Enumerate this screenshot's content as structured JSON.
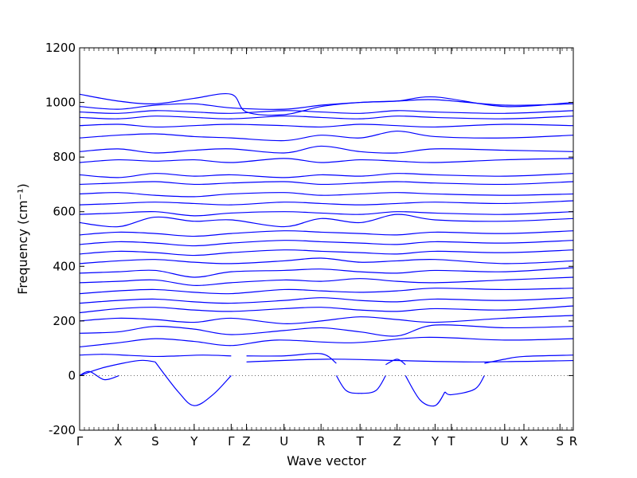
{
  "chart_data": {
    "type": "line",
    "title": "",
    "xlabel": "Wave vector",
    "ylabel": "Frequency (cm⁻¹)",
    "ylim": [
      -200,
      1200
    ],
    "yticks": [
      -200,
      0,
      200,
      400,
      600,
      800,
      1000,
      1200
    ],
    "x_tick_labels": [
      "Γ",
      "X",
      "S",
      "Y",
      "Γ",
      "Z",
      "U",
      "R",
      "T",
      "Z",
      "Y",
      "T",
      "U",
      "X",
      "S",
      "R"
    ],
    "x_tick_positions": [
      0.0,
      0.078,
      0.153,
      0.232,
      0.307,
      0.338,
      0.414,
      0.489,
      0.568,
      0.643,
      0.72,
      0.753,
      0.861,
      0.9,
      0.973,
      1.0
    ],
    "zero_line": true,
    "grid": false,
    "line_color": "#0000ff",
    "series": [
      {
        "x": [
          0.0,
          0.02,
          0.05,
          0.08
        ],
        "y": [
          0,
          15,
          -15,
          0
        ]
      },
      {
        "x": [
          0.0,
          0.05,
          0.12,
          0.153
        ],
        "y": [
          0,
          30,
          55,
          50
        ]
      },
      {
        "x": [
          0.153,
          0.2,
          0.232,
          0.27,
          0.307
        ],
        "y": [
          50,
          -60,
          -110,
          -70,
          0
        ]
      },
      {
        "x": [
          0.0,
          0.05,
          0.1,
          0.153,
          0.2,
          0.25,
          0.307
        ],
        "y": [
          75,
          78,
          74,
          70,
          72,
          75,
          72
        ]
      },
      {
        "x": [
          0.338,
          0.414,
          0.489,
          0.52
        ],
        "y": [
          72,
          72,
          80,
          45
        ]
      },
      {
        "x": [
          0.52,
          0.54,
          0.568,
          0.6,
          0.62
        ],
        "y": [
          0,
          -55,
          -65,
          -55,
          0
        ]
      },
      {
        "x": [
          0.62,
          0.643,
          0.66
        ],
        "y": [
          40,
          60,
          40
        ]
      },
      {
        "x": [
          0.66,
          0.69,
          0.72,
          0.74
        ],
        "y": [
          0,
          -90,
          -110,
          -60
        ]
      },
      {
        "x": [
          0.74,
          0.753,
          0.8,
          0.82
        ],
        "y": [
          -60,
          -70,
          -50,
          0
        ]
      },
      {
        "x": [
          0.82,
          0.861,
          0.9,
          1.0
        ],
        "y": [
          45,
          60,
          70,
          75
        ]
      },
      {
        "x": [
          0.338,
          0.5,
          0.643,
          0.8,
          1.0
        ],
        "y": [
          50,
          60,
          55,
          50,
          55
        ]
      },
      {
        "x": [
          0.0,
          0.078,
          0.153,
          0.232,
          0.307,
          0.4,
          0.55,
          0.7,
          0.861,
          1.0
        ],
        "y": [
          105,
          120,
          135,
          125,
          110,
          130,
          120,
          140,
          130,
          135
        ]
      },
      {
        "x": [
          0.0,
          0.078,
          0.153,
          0.232,
          0.307,
          0.414,
          0.489,
          0.568,
          0.643,
          0.72,
          0.861,
          1.0
        ],
        "y": [
          155,
          160,
          180,
          170,
          150,
          165,
          175,
          160,
          145,
          185,
          175,
          180
        ]
      },
      {
        "x": [
          0.0,
          0.078,
          0.153,
          0.232,
          0.307,
          0.414,
          0.489,
          0.568,
          0.643,
          0.72,
          0.861,
          1.0
        ],
        "y": [
          200,
          210,
          205,
          195,
          210,
          190,
          200,
          215,
          205,
          195,
          210,
          220
        ]
      },
      {
        "x": [
          0.0,
          0.078,
          0.153,
          0.232,
          0.307,
          0.414,
          0.489,
          0.568,
          0.643,
          0.72,
          0.861,
          1.0
        ],
        "y": [
          230,
          245,
          250,
          240,
          235,
          245,
          250,
          240,
          235,
          245,
          240,
          255
        ]
      },
      {
        "x": [
          0.0,
          0.078,
          0.153,
          0.232,
          0.307,
          0.414,
          0.489,
          0.568,
          0.643,
          0.72,
          0.861,
          1.0
        ],
        "y": [
          265,
          275,
          280,
          270,
          265,
          275,
          285,
          275,
          270,
          280,
          275,
          285
        ]
      },
      {
        "x": [
          0.0,
          0.078,
          0.153,
          0.232,
          0.307,
          0.414,
          0.489,
          0.568,
          0.643,
          0.72,
          0.861,
          1.0
        ],
        "y": [
          300,
          310,
          315,
          305,
          300,
          315,
          310,
          305,
          310,
          320,
          315,
          320
        ]
      },
      {
        "x": [
          0.0,
          0.078,
          0.153,
          0.232,
          0.307,
          0.414,
          0.489,
          0.568,
          0.643,
          0.72,
          0.861,
          1.0
        ],
        "y": [
          340,
          345,
          350,
          330,
          340,
          350,
          345,
          355,
          345,
          340,
          350,
          360
        ]
      },
      {
        "x": [
          0.0,
          0.078,
          0.153,
          0.232,
          0.307,
          0.414,
          0.489,
          0.568,
          0.643,
          0.72,
          0.861,
          1.0
        ],
        "y": [
          375,
          380,
          385,
          360,
          380,
          385,
          390,
          380,
          375,
          385,
          380,
          395
        ]
      },
      {
        "x": [
          0.0,
          0.078,
          0.153,
          0.232,
          0.307,
          0.414,
          0.489,
          0.568,
          0.643,
          0.72,
          0.861,
          1.0
        ],
        "y": [
          410,
          420,
          425,
          415,
          410,
          420,
          430,
          415,
          420,
          425,
          410,
          420
        ]
      },
      {
        "x": [
          0.0,
          0.078,
          0.153,
          0.232,
          0.307,
          0.414,
          0.489,
          0.568,
          0.643,
          0.72,
          0.861,
          1.0
        ],
        "y": [
          445,
          455,
          450,
          440,
          450,
          460,
          455,
          450,
          445,
          455,
          450,
          460
        ]
      },
      {
        "x": [
          0.0,
          0.078,
          0.153,
          0.232,
          0.307,
          0.414,
          0.489,
          0.568,
          0.643,
          0.72,
          0.861,
          1.0
        ],
        "y": [
          480,
          490,
          485,
          475,
          485,
          495,
          490,
          485,
          480,
          490,
          485,
          495
        ]
      },
      {
        "x": [
          0.0,
          0.078,
          0.153,
          0.232,
          0.307,
          0.414,
          0.489,
          0.568,
          0.643,
          0.72,
          0.861,
          1.0
        ],
        "y": [
          515,
          525,
          520,
          510,
          520,
          530,
          525,
          520,
          515,
          525,
          520,
          530
        ]
      },
      {
        "x": [
          0.0,
          0.078,
          0.153,
          0.232,
          0.307,
          0.414,
          0.489,
          0.568,
          0.643,
          0.72,
          0.861,
          1.0
        ],
        "y": [
          560,
          545,
          580,
          565,
          570,
          545,
          575,
          560,
          590,
          570,
          565,
          575
        ]
      },
      {
        "x": [
          0.0,
          0.078,
          0.153,
          0.232,
          0.307,
          0.414,
          0.489,
          0.568,
          0.643,
          0.72,
          0.861,
          1.0
        ],
        "y": [
          590,
          595,
          600,
          585,
          595,
          600,
          595,
          590,
          600,
          595,
          590,
          600
        ]
      },
      {
        "x": [
          0.0,
          0.078,
          0.153,
          0.232,
          0.307,
          0.414,
          0.489,
          0.568,
          0.643,
          0.72,
          0.861,
          1.0
        ],
        "y": [
          625,
          630,
          635,
          630,
          625,
          635,
          630,
          625,
          630,
          635,
          630,
          640
        ]
      },
      {
        "x": [
          0.0,
          0.078,
          0.153,
          0.232,
          0.307,
          0.414,
          0.489,
          0.568,
          0.643,
          0.72,
          0.861,
          1.0
        ],
        "y": [
          665,
          670,
          660,
          655,
          665,
          670,
          660,
          665,
          670,
          665,
          660,
          665
        ]
      },
      {
        "x": [
          0.0,
          0.078,
          0.153,
          0.232,
          0.307,
          0.414,
          0.489,
          0.568,
          0.643,
          0.72,
          0.861,
          1.0
        ],
        "y": [
          700,
          705,
          710,
          700,
          705,
          710,
          700,
          705,
          710,
          705,
          700,
          710
        ]
      },
      {
        "x": [
          0.0,
          0.078,
          0.153,
          0.232,
          0.307,
          0.414,
          0.489,
          0.568,
          0.643,
          0.72,
          0.861,
          1.0
        ],
        "y": [
          735,
          725,
          740,
          730,
          735,
          725,
          735,
          730,
          740,
          735,
          730,
          740
        ]
      },
      {
        "x": [
          0.0,
          0.078,
          0.153,
          0.232,
          0.307,
          0.414,
          0.489,
          0.568,
          0.643,
          0.72,
          0.861,
          1.0
        ],
        "y": [
          780,
          790,
          785,
          790,
          780,
          795,
          780,
          790,
          785,
          780,
          790,
          795
        ]
      },
      {
        "x": [
          0.0,
          0.078,
          0.153,
          0.232,
          0.307,
          0.414,
          0.489,
          0.568,
          0.643,
          0.72,
          0.861,
          1.0
        ],
        "y": [
          820,
          830,
          815,
          825,
          830,
          815,
          840,
          820,
          815,
          830,
          825,
          820
        ]
      },
      {
        "x": [
          0.0,
          0.078,
          0.153,
          0.232,
          0.307,
          0.414,
          0.489,
          0.568,
          0.643,
          0.72,
          0.861,
          1.0
        ],
        "y": [
          870,
          880,
          885,
          875,
          870,
          860,
          880,
          870,
          895,
          875,
          870,
          880
        ]
      },
      {
        "x": [
          0.0,
          0.078,
          0.153,
          0.232,
          0.307,
          0.414,
          0.489,
          0.568,
          0.643,
          0.72,
          0.861,
          1.0
        ],
        "y": [
          915,
          920,
          910,
          915,
          920,
          915,
          910,
          920,
          915,
          910,
          920,
          915
        ]
      },
      {
        "x": [
          0.0,
          0.078,
          0.153,
          0.232,
          0.307,
          0.414,
          0.489,
          0.568,
          0.643,
          0.72,
          0.861,
          1.0
        ],
        "y": [
          945,
          940,
          950,
          945,
          940,
          950,
          945,
          940,
          950,
          945,
          940,
          950
        ]
      },
      {
        "x": [
          0.0,
          0.078,
          0.153,
          0.232,
          0.307,
          0.414,
          0.489,
          0.568,
          0.643,
          0.72,
          0.861,
          1.0
        ],
        "y": [
          965,
          960,
          970,
          965,
          960,
          970,
          965,
          960,
          970,
          965,
          960,
          970
        ]
      },
      {
        "x": [
          0.0,
          0.078,
          0.153,
          0.232,
          0.307,
          0.414,
          0.489,
          0.568,
          0.643,
          0.72,
          0.861,
          1.0
        ],
        "y": [
          985,
          975,
          990,
          995,
          980,
          975,
          990,
          1000,
          1005,
          1010,
          990,
          995
        ]
      },
      {
        "x": [
          0.0,
          0.078,
          0.153,
          0.232,
          0.307,
          0.338,
          0.414,
          0.489,
          0.568,
          0.643,
          0.72,
          0.861,
          1.0
        ],
        "y": [
          1030,
          1005,
          995,
          1015,
          1030,
          965,
          955,
          985,
          1000,
          1005,
          1020,
          985,
          1000
        ]
      }
    ]
  }
}
